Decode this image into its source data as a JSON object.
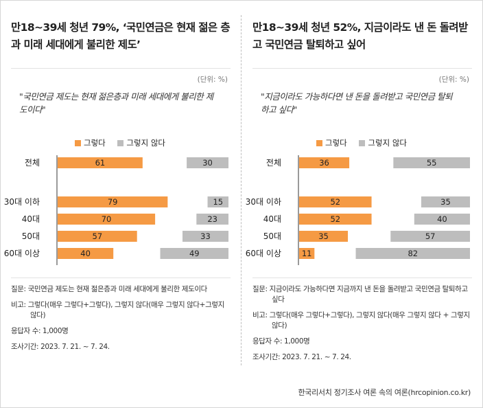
{
  "chart_data": [
    {
      "type": "bar",
      "title": "만18~39세 청년 79%, ‘국민연금은 현재 젊은 층과 미래 세대에게 불리한 제도’",
      "unit": "(단위: %)",
      "question_quote": "\"국민연금 제도는 현재 젊은층과 미래 세대에게 불리한 제도이다\"",
      "categories": [
        "전체",
        "30대 이하",
        "40대",
        "50대",
        "60대 이상"
      ],
      "series": [
        {
          "name": "그렇다",
          "values": [
            61,
            79,
            70,
            57,
            40
          ],
          "color": "#f59a44"
        },
        {
          "name": "그렇지 않다",
          "values": [
            30,
            15,
            23,
            33,
            49
          ],
          "color": "#bdbdbd"
        }
      ],
      "notes": {
        "question": "질문: 국민연금 제도는 현재 젊은층과 미래 세대에게 불리한 제도이다",
        "remark": "비고: 그렇다(매우 그렇다+그렇다), 그렇지 않다(매우 그렇지 않다+그렇지 않다)",
        "respondents": "응답자 수: 1,000명",
        "period": "조사기간: 2023. 7. 21. ~ 7. 24."
      }
    },
    {
      "type": "bar",
      "title": "만18~39세 청년 52%, 지금이라도 낸 돈 돌려받고 국민연금 탈퇴하고 싶어",
      "unit": "(단위: %)",
      "question_quote": "\"지금이라도 가능하다면 낸 돈을 돌려받고 국민연금 탈퇴하고 싶다\"",
      "categories": [
        "전체",
        "30대 이하",
        "40대",
        "50대",
        "60대 이상"
      ],
      "series": [
        {
          "name": "그렇다",
          "values": [
            36,
            52,
            52,
            35,
            11
          ],
          "color": "#f59a44"
        },
        {
          "name": "그렇지 않다",
          "values": [
            55,
            35,
            40,
            57,
            82
          ],
          "color": "#bdbdbd"
        }
      ],
      "notes": {
        "question": "질문: 지금이라도 가능하다면 지금까지 낸 돈을 돌려받고 국민연금 탈퇴하고 싶다",
        "remark": "비고: 그렇다(매우 그렇다+그렇다), 그렇지 않다(매우 그렇지 않다 + 그렇지 않다)",
        "respondents": "응답자 수: 1,000명",
        "period": "조사기간: 2023. 7. 21. ~ 7. 24."
      }
    }
  ],
  "source": "한국리서치 정기조사 여론 속의 여론(hrcopinion.co.kr)"
}
